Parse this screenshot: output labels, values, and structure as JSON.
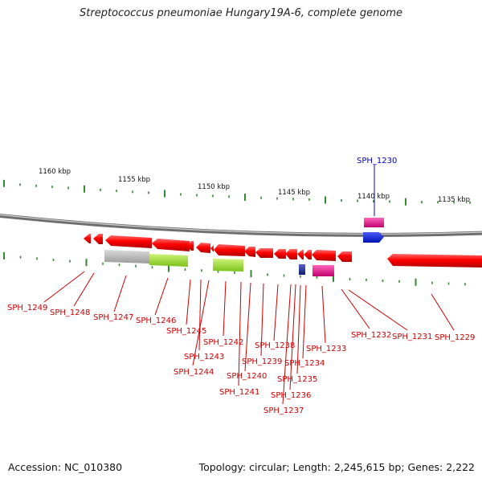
{
  "title": "Streptococcus pneumoniae Hungary19A-6, complete genome",
  "footer": {
    "accession": "Accession: NC_010380",
    "summary": "Topology: circular; Length: 2,245,615 bp; Genes: 2,222"
  },
  "colors": {
    "backbone": "#8a8a8a",
    "tick": "#2e8b2e",
    "gene_red": "#ff0000",
    "gene_grey": "#b4b4b4",
    "gene_green": "#a6e22e",
    "gene_blue": "#0a14e6",
    "gene_magenta": "#e6198c",
    "gene_navy": "#1e2a8c",
    "label_red": "#cc0000",
    "label_blue": "#0000cc"
  },
  "kbp_labels": [
    {
      "text": "1160 kbp"
    },
    {
      "text": "1155 kbp"
    },
    {
      "text": "1150 kbp"
    },
    {
      "text": "1145 kbp"
    },
    {
      "text": "1140 kbp"
    },
    {
      "text": "1135 kbp"
    }
  ],
  "gene_labels": [
    {
      "text": "SPH_1230",
      "color": "blue"
    },
    {
      "text": "SPH_1249",
      "color": "red"
    },
    {
      "text": "SPH_1248",
      "color": "red"
    },
    {
      "text": "SPH_1247",
      "color": "red"
    },
    {
      "text": "SPH_1246",
      "color": "red"
    },
    {
      "text": "SPH_1245",
      "color": "red"
    },
    {
      "text": "SPH_1243",
      "color": "red"
    },
    {
      "text": "SPH_1244",
      "color": "red"
    },
    {
      "text": "SPH_1242",
      "color": "red"
    },
    {
      "text": "SPH_1241",
      "color": "red"
    },
    {
      "text": "SPH_1240",
      "color": "red"
    },
    {
      "text": "SPH_1239",
      "color": "red"
    },
    {
      "text": "SPH_1238",
      "color": "red"
    },
    {
      "text": "SPH_1237",
      "color": "red"
    },
    {
      "text": "SPH_1236",
      "color": "red"
    },
    {
      "text": "SPH_1235",
      "color": "red"
    },
    {
      "text": "SPH_1234",
      "color": "red"
    },
    {
      "text": "SPH_1233",
      "color": "red"
    },
    {
      "text": "SPH_1232",
      "color": "red"
    },
    {
      "text": "SPH_1231",
      "color": "red"
    },
    {
      "text": "SPH_1229",
      "color": "red"
    }
  ]
}
